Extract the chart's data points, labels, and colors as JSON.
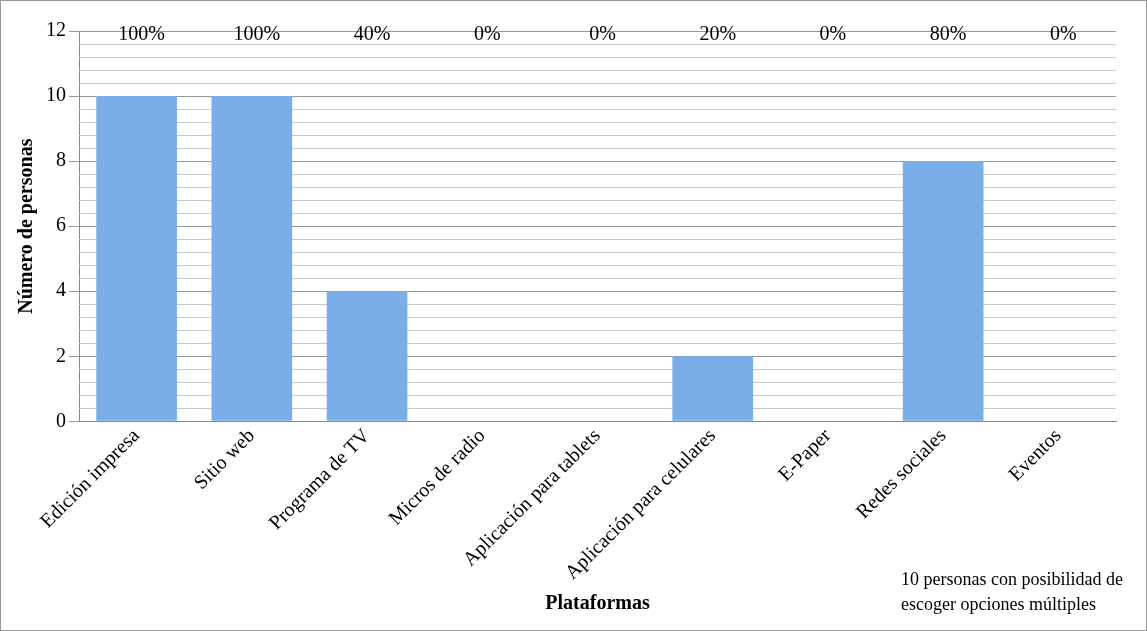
{
  "chart_data": {
    "type": "bar",
    "xlabel": "Plataformas",
    "ylabel": "Número de personas",
    "categories": [
      "Edición impresa",
      "Sitio web",
      "Programa de TV",
      "Micros de radio",
      "Aplicación para tablets",
      "Aplicación para celulares",
      "E-Paper",
      "Redes sociales",
      "Eventos"
    ],
    "values": [
      10,
      10,
      4,
      0,
      0,
      2,
      0,
      8,
      0
    ],
    "color": "#79aee9",
    "ylim": [
      0,
      12
    ],
    "yticks": [
      0,
      2,
      4,
      6,
      8,
      10,
      12
    ],
    "grid": "y",
    "legend": false,
    "annotations": [
      "100%",
      "100%",
      "40%",
      "0%",
      "0%",
      "20%",
      "0%",
      "80%",
      "0%",
      "10 personas con posibilidad de escoger opciones múltiples"
    ]
  }
}
